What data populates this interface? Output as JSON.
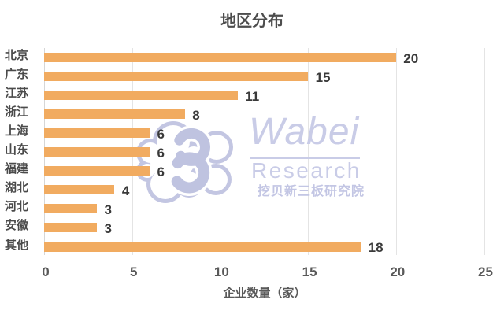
{
  "title": "地区分布",
  "watermark": {
    "logo_glyph": "3",
    "brand": "Wabei",
    "brand_sub": "Research",
    "brand_cn": "挖贝新三板研究院",
    "color": "#c9cce7"
  },
  "chart_data": {
    "type": "bar",
    "orientation": "horizontal",
    "title": "地区分布",
    "categories": [
      "北京",
      "广东",
      "江苏",
      "浙江",
      "上海",
      "山东",
      "福建",
      "湖北",
      "河北",
      "安徽",
      "其他"
    ],
    "values": [
      20,
      15,
      11,
      8,
      6,
      6,
      6,
      4,
      3,
      3,
      18
    ],
    "xlabel": "企业数量（家）",
    "ylabel": "",
    "xlim": [
      0,
      25
    ],
    "xticks": [
      0,
      5,
      10,
      15,
      20,
      25
    ],
    "grid": true,
    "legend": false,
    "bar_color": "#f1ab60",
    "value_labels": true
  }
}
